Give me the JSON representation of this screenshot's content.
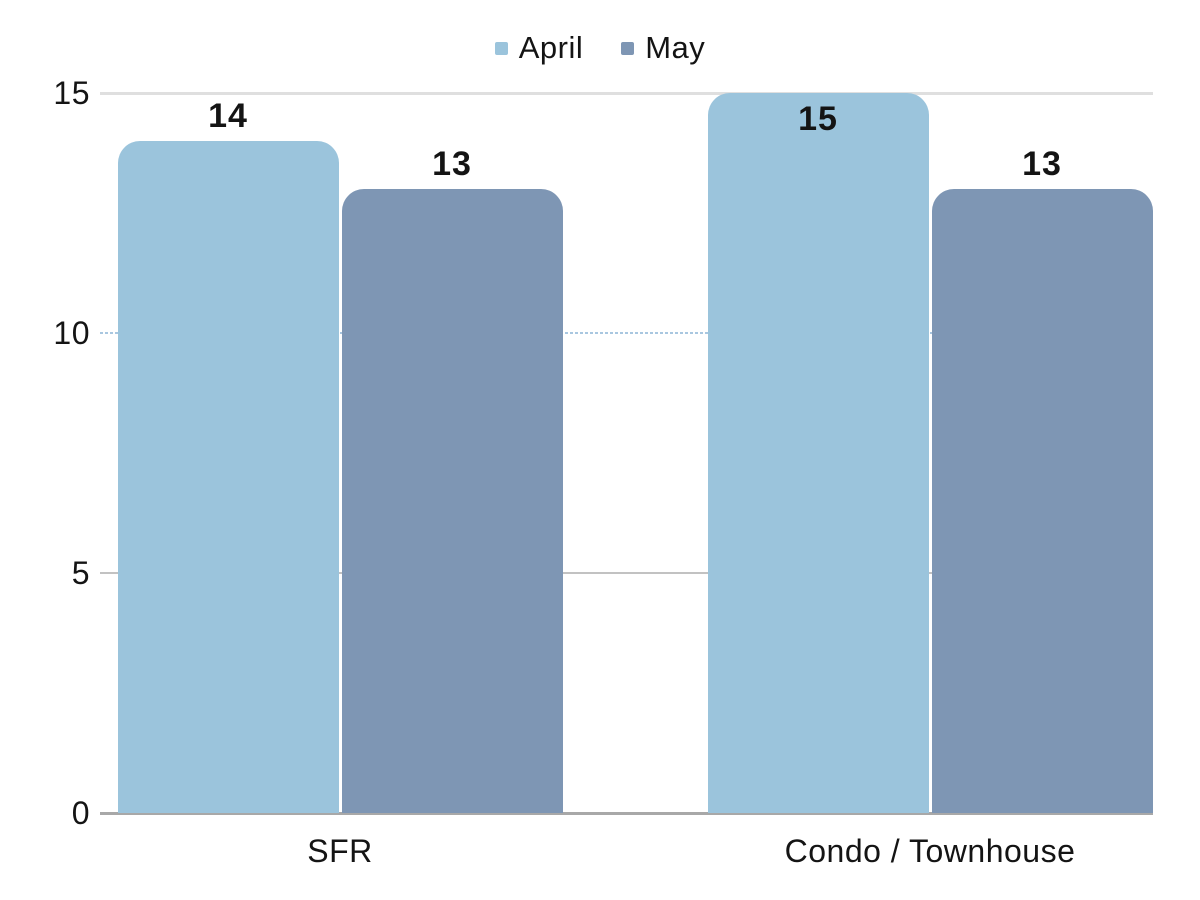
{
  "chart_data": {
    "type": "bar",
    "title": "",
    "categories": [
      "SFR",
      "Condo / Townhouse"
    ],
    "series": [
      {
        "name": "April",
        "color": "#9BC4DC",
        "values": [
          14,
          15
        ]
      },
      {
        "name": "May",
        "color": "#7E96B4",
        "values": [
          13,
          13
        ]
      }
    ],
    "xlabel": "",
    "ylabel": "",
    "ylim": [
      0,
      15
    ],
    "yticks": [
      0,
      5,
      10,
      15
    ],
    "grid": "horizontal",
    "legend_position": "top-center",
    "value_labels": "shown",
    "text_color": "#141414"
  }
}
